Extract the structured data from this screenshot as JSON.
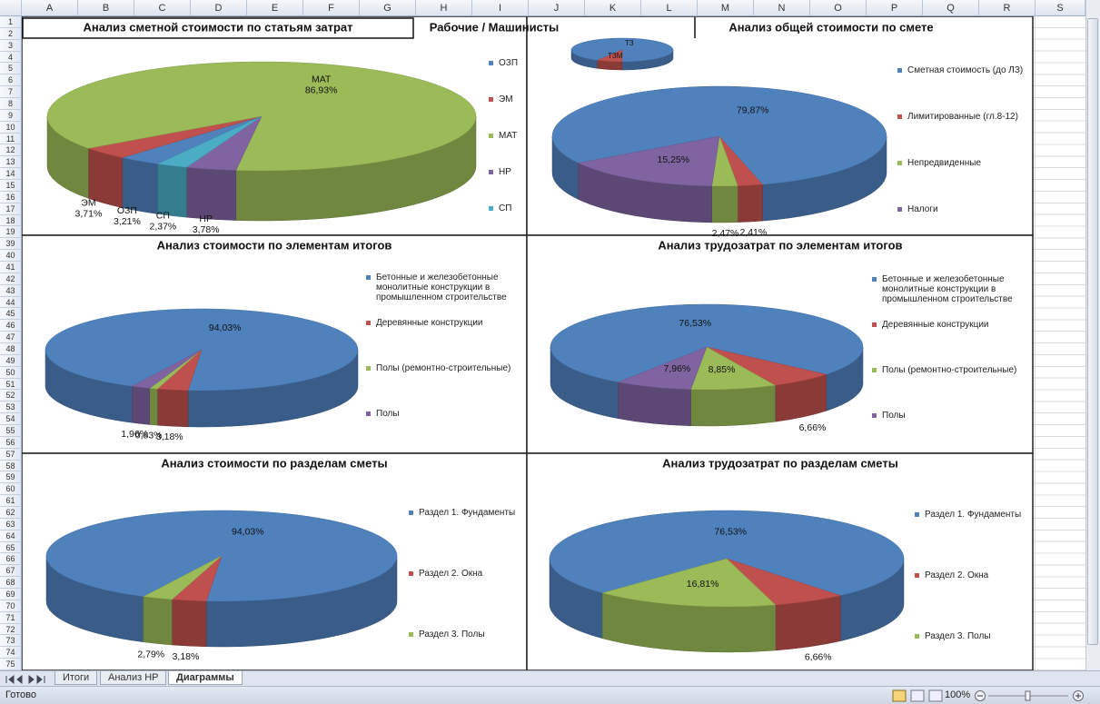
{
  "sheet": {
    "columns": [
      "A",
      "B",
      "C",
      "D",
      "E",
      "F",
      "G",
      "H",
      "I",
      "J",
      "K",
      "L",
      "M",
      "N",
      "O",
      "P",
      "Q",
      "R",
      "S"
    ],
    "rows": [
      1,
      2,
      3,
      4,
      5,
      6,
      7,
      8,
      9,
      10,
      11,
      12,
      13,
      14,
      15,
      16,
      17,
      18,
      19,
      39,
      40,
      41,
      42,
      43,
      44,
      45,
      46,
      47,
      48,
      49,
      50,
      51,
      52,
      53,
      54,
      55,
      56,
      57,
      58,
      59,
      60,
      61,
      62,
      63,
      64,
      65,
      66,
      67,
      68,
      69,
      70,
      71,
      72,
      73,
      74,
      75
    ],
    "tabs": [
      "Итоги",
      "Анализ НР",
      "Диаграммы"
    ],
    "status": "Готово",
    "zoom": "100%"
  },
  "chart_data": [
    {
      "type": "pie",
      "title": "Анализ сметной стоимости по статьям затрат",
      "data_labels": "category_value",
      "categories": [
        "ОЗП",
        "ЭМ",
        "МАТ",
        "НР",
        "СП"
      ],
      "values": [
        3.21,
        3.71,
        86.93,
        3.78,
        2.37
      ],
      "value_labels": [
        "3,21%",
        "3,71%",
        "86,93%",
        "3,78%",
        "2,37%"
      ],
      "colors": [
        "#4f81bd",
        "#c0504d",
        "#9bbb59",
        "#8064a2",
        "#4bacc6"
      ],
      "legend": "right"
    },
    {
      "type": "pie",
      "title": "Рабочие / Машинисты",
      "data_labels": "category",
      "categories": [
        "ТЗ",
        "ТЗМ"
      ],
      "values": [
        92,
        8
      ],
      "colors": [
        "#4f81bd",
        "#c0504d"
      ]
    },
    {
      "type": "pie",
      "title": "Анализ общей стоимости по смете",
      "data_labels": "value",
      "categories": [
        "Сметная стоимость (до ЛЗ)",
        "Лимитированные (гл.8-12)",
        "Непредвиденные",
        "Налоги"
      ],
      "values": [
        79.87,
        2.41,
        2.47,
        15.25
      ],
      "value_labels": [
        "79,87%",
        "2,41%",
        "2,47%",
        "15,25%"
      ],
      "colors": [
        "#4f81bd",
        "#c0504d",
        "#9bbb59",
        "#8064a2"
      ],
      "legend": "right"
    },
    {
      "type": "pie",
      "title": "Анализ стоимости по элементам итогов",
      "data_labels": "value",
      "categories": [
        "Бетонные и железобетонные монолитные конструкции в промышленном строительстве",
        "Деревянные конструкции",
        "Полы (ремонтно-строительные)",
        "Полы"
      ],
      "values": [
        94.03,
        3.18,
        0.83,
        1.96
      ],
      "value_labels": [
        "94,03%",
        "3,18%",
        "0,83%",
        "1,96%"
      ],
      "colors": [
        "#4f81bd",
        "#c0504d",
        "#9bbb59",
        "#8064a2"
      ],
      "legend": "right"
    },
    {
      "type": "pie",
      "title": "Анализ трудозатрат по элементам итогов",
      "data_labels": "value",
      "categories": [
        "Бетонные и железобетонные монолитные конструкции в промышленном строительстве",
        "Деревянные конструкции",
        "Полы (ремонтно-строительные)",
        "Полы"
      ],
      "values": [
        76.53,
        6.66,
        8.85,
        7.96
      ],
      "value_labels": [
        "76,53%",
        "6,66%",
        "8,85%",
        "7,96%"
      ],
      "colors": [
        "#4f81bd",
        "#c0504d",
        "#9bbb59",
        "#8064a2"
      ],
      "legend": "right"
    },
    {
      "type": "pie",
      "title": "Анализ стоимости по разделам сметы",
      "data_labels": "value",
      "categories": [
        "Раздел 1. Фундаменты",
        "Раздел 2. Окна",
        "Раздел 3. Полы"
      ],
      "values": [
        94.03,
        3.18,
        2.79
      ],
      "value_labels": [
        "94,03%",
        "3,18%",
        "2,79%"
      ],
      "colors": [
        "#4f81bd",
        "#c0504d",
        "#9bbb59"
      ],
      "legend": "right"
    },
    {
      "type": "pie",
      "title": "Анализ трудозатрат по разделам сметы",
      "data_labels": "value",
      "categories": [
        "Раздел 1. Фундаменты",
        "Раздел 2. Окна",
        "Раздел 3. Полы"
      ],
      "values": [
        76.53,
        6.66,
        16.81
      ],
      "value_labels": [
        "76,53%",
        "6,66%",
        "16,81%"
      ],
      "colors": [
        "#4f81bd",
        "#c0504d",
        "#9bbb59"
      ],
      "legend": "right"
    }
  ]
}
